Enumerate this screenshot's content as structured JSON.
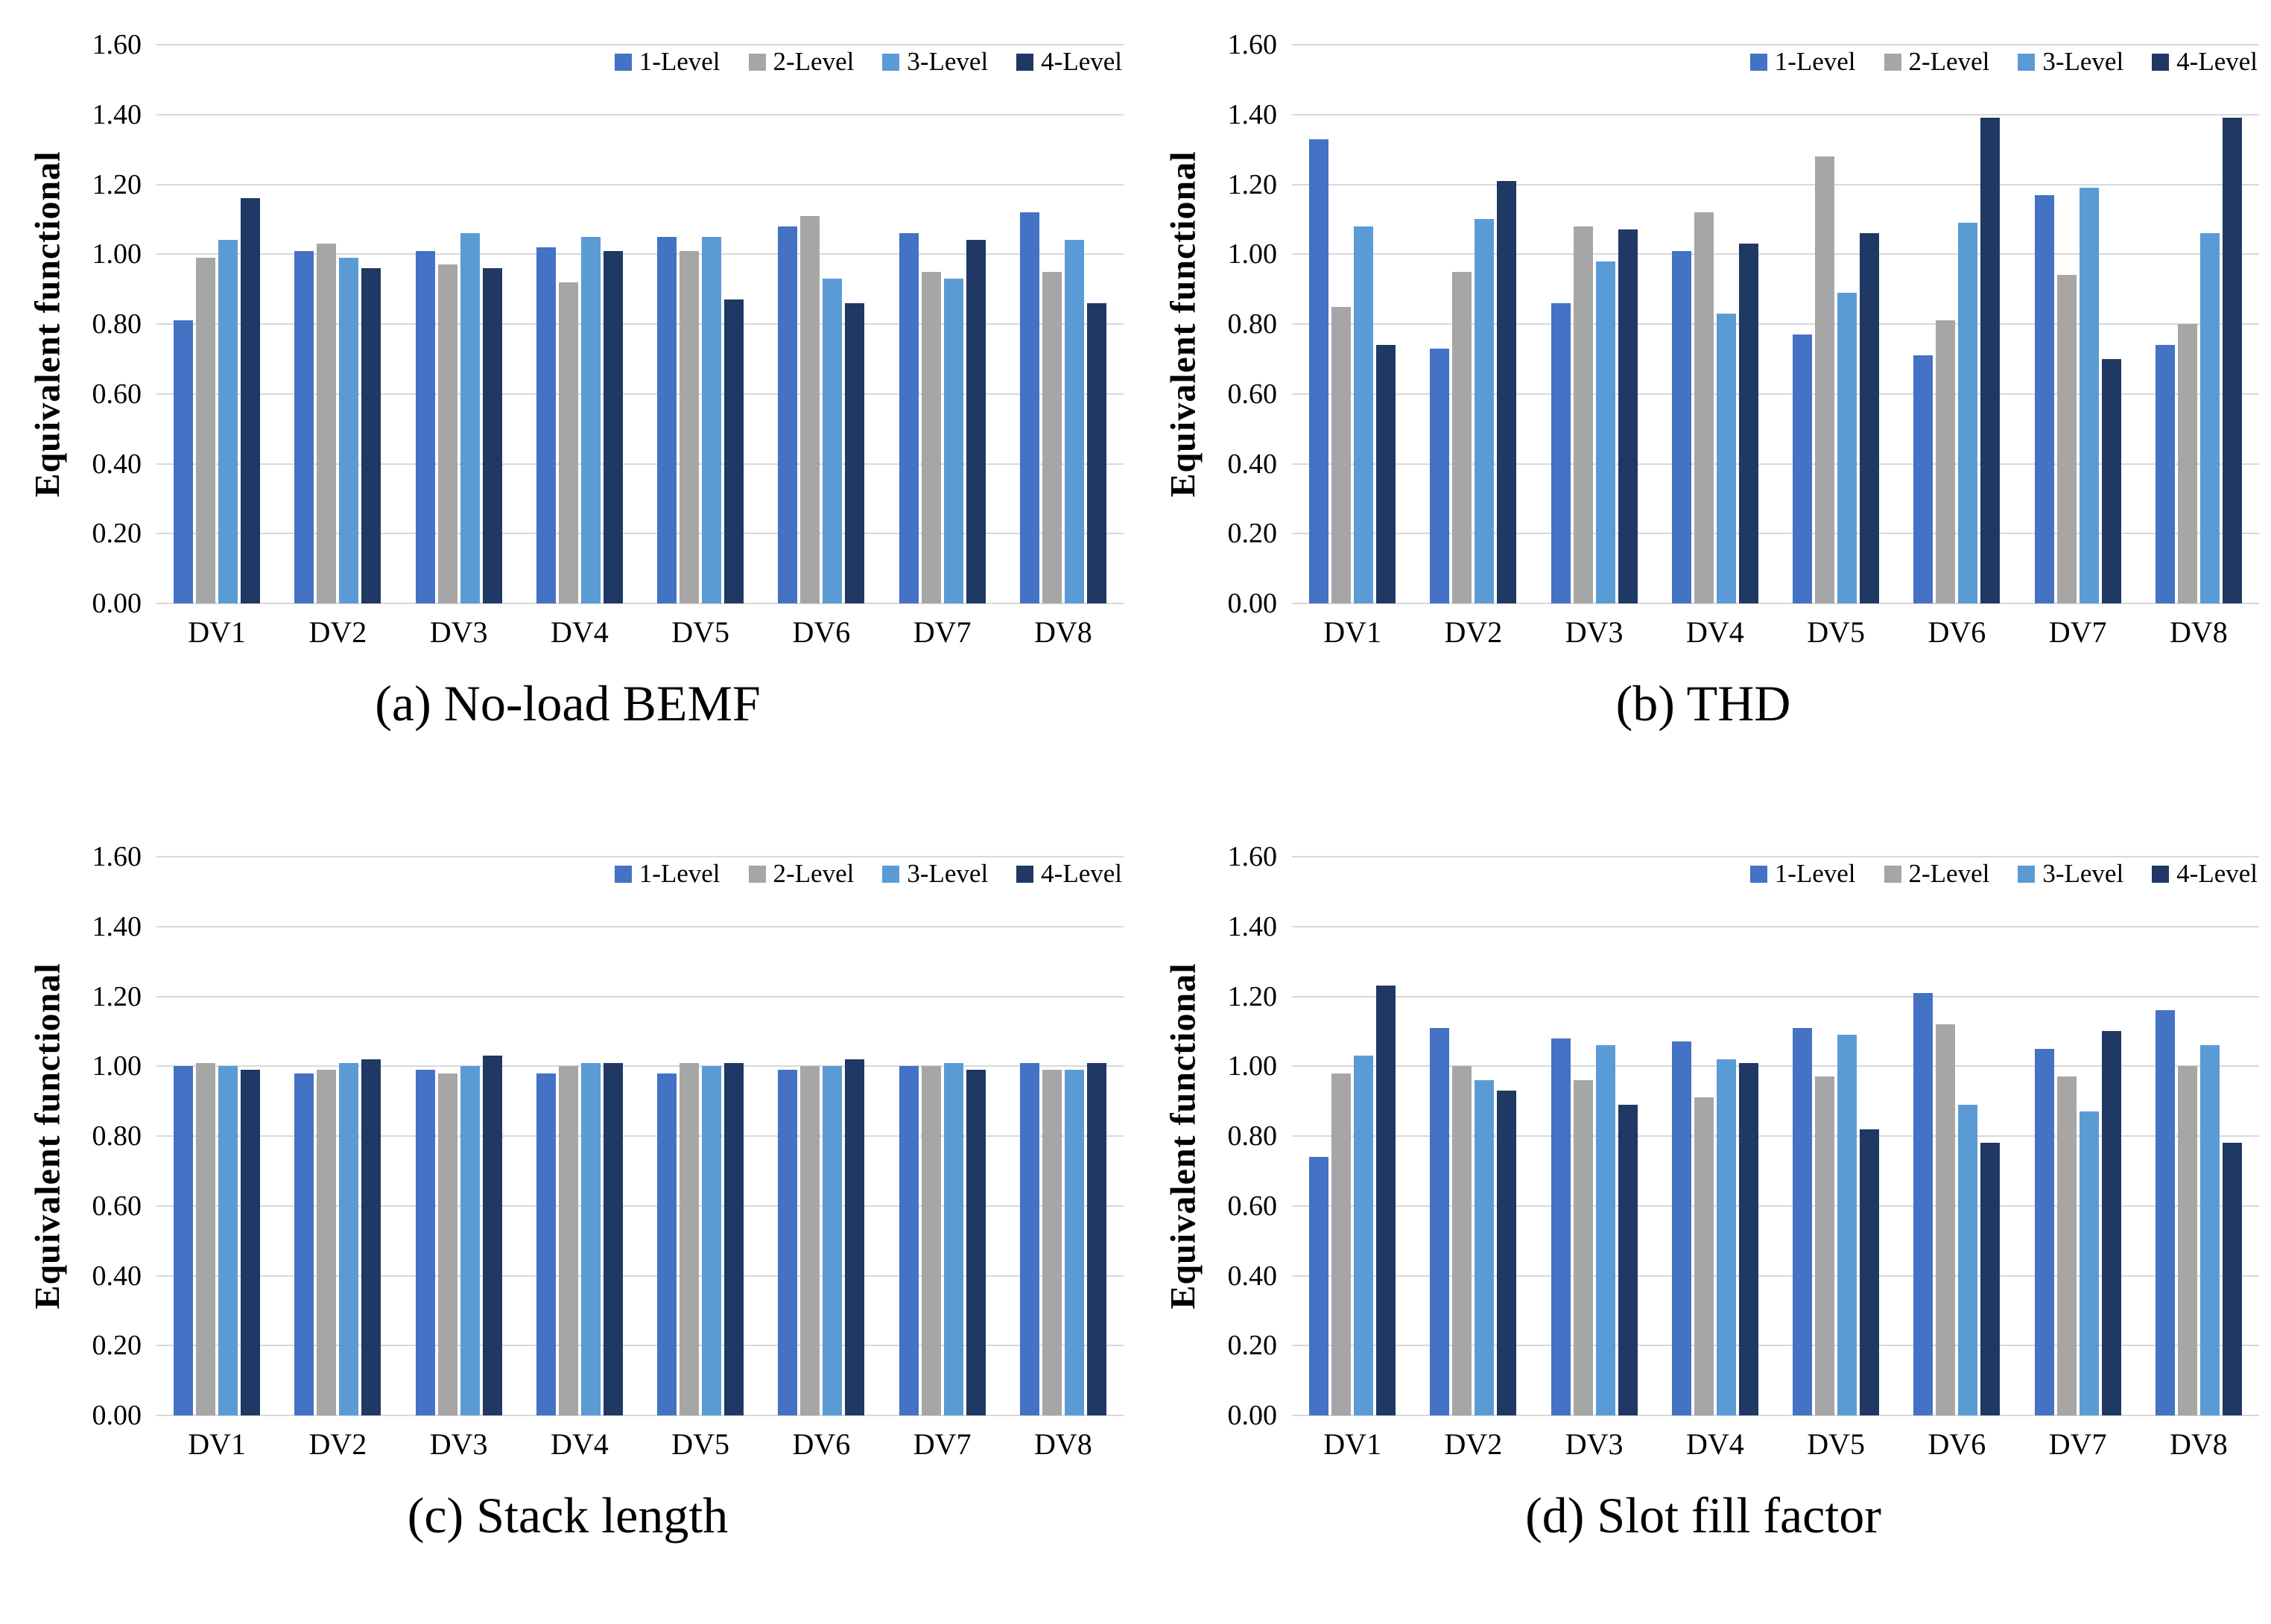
{
  "figure": {
    "background": "#ffffff",
    "gridline_color": "#d9d9d9",
    "text_color": "#000000"
  },
  "chart_data": [
    {
      "type": "bar",
      "caption": "(a) No-load BEMF",
      "ylabel": "Equivalent functional",
      "categories": [
        "DV1",
        "DV2",
        "DV3",
        "DV4",
        "DV5",
        "DV6",
        "DV7",
        "DV8"
      ],
      "ylim": [
        0,
        1.6
      ],
      "ytick_step": 0.2,
      "ytick_labels": [
        "0.00",
        "0.20",
        "0.40",
        "0.60",
        "0.80",
        "1.00",
        "1.20",
        "1.40",
        "1.60"
      ],
      "grid": true,
      "legend_position": "top-right",
      "series": [
        {
          "name": "1-Level",
          "color": "#4472C4",
          "values": [
            0.81,
            1.01,
            1.01,
            1.02,
            1.05,
            1.08,
            1.06,
            1.12
          ]
        },
        {
          "name": "2-Level",
          "color": "#A6A6A6",
          "values": [
            0.99,
            1.03,
            0.97,
            0.92,
            1.01,
            1.11,
            0.95,
            0.95
          ]
        },
        {
          "name": "3-Level",
          "color": "#5B9BD5",
          "values": [
            1.04,
            0.99,
            1.06,
            1.05,
            1.05,
            0.93,
            0.93,
            1.04
          ]
        },
        {
          "name": "4-Level",
          "color": "#1F3864",
          "values": [
            1.16,
            0.96,
            0.96,
            1.01,
            0.87,
            0.86,
            1.04,
            0.86
          ]
        }
      ]
    },
    {
      "type": "bar",
      "caption": "(b) THD",
      "ylabel": "Equivalent functional",
      "categories": [
        "DV1",
        "DV2",
        "DV3",
        "DV4",
        "DV5",
        "DV6",
        "DV7",
        "DV8"
      ],
      "ylim": [
        0,
        1.6
      ],
      "ytick_step": 0.2,
      "ytick_labels": [
        "0.00",
        "0.20",
        "0.40",
        "0.60",
        "0.80",
        "1.00",
        "1.20",
        "1.40",
        "1.60"
      ],
      "grid": true,
      "legend_position": "top-right",
      "series": [
        {
          "name": "1-Level",
          "color": "#4472C4",
          "values": [
            1.33,
            0.73,
            0.86,
            1.01,
            0.77,
            0.71,
            1.17,
            0.74
          ]
        },
        {
          "name": "2-Level",
          "color": "#A6A6A6",
          "values": [
            0.85,
            0.95,
            1.08,
            1.12,
            1.28,
            0.81,
            0.94,
            0.8
          ]
        },
        {
          "name": "3-Level",
          "color": "#5B9BD5",
          "values": [
            1.08,
            1.1,
            0.98,
            0.83,
            0.89,
            1.09,
            1.19,
            1.06
          ]
        },
        {
          "name": "4-Level",
          "color": "#1F3864",
          "values": [
            0.74,
            1.21,
            1.07,
            1.03,
            1.06,
            1.39,
            0.7,
            1.39
          ]
        }
      ]
    },
    {
      "type": "bar",
      "caption": "(c) Stack length",
      "ylabel": "Equivalent functional",
      "categories": [
        "DV1",
        "DV2",
        "DV3",
        "DV4",
        "DV5",
        "DV6",
        "DV7",
        "DV8"
      ],
      "ylim": [
        0,
        1.6
      ],
      "ytick_step": 0.2,
      "ytick_labels": [
        "0.00",
        "0.20",
        "0.40",
        "0.60",
        "0.80",
        "1.00",
        "1.20",
        "1.40",
        "1.60"
      ],
      "grid": true,
      "legend_position": "top-right",
      "series": [
        {
          "name": "1-Level",
          "color": "#4472C4",
          "values": [
            1.0,
            0.98,
            0.99,
            0.98,
            0.98,
            0.99,
            1.0,
            1.01
          ]
        },
        {
          "name": "2-Level",
          "color": "#A6A6A6",
          "values": [
            1.01,
            0.99,
            0.98,
            1.0,
            1.01,
            1.0,
            1.0,
            0.99
          ]
        },
        {
          "name": "3-Level",
          "color": "#5B9BD5",
          "values": [
            1.0,
            1.01,
            1.0,
            1.01,
            1.0,
            1.0,
            1.01,
            0.99
          ]
        },
        {
          "name": "4-Level",
          "color": "#1F3864",
          "values": [
            0.99,
            1.02,
            1.03,
            1.01,
            1.01,
            1.02,
            0.99,
            1.01
          ]
        }
      ]
    },
    {
      "type": "bar",
      "caption": "(d) Slot fill factor",
      "ylabel": "Equivalent functional",
      "categories": [
        "DV1",
        "DV2",
        "DV3",
        "DV4",
        "DV5",
        "DV6",
        "DV7",
        "DV8"
      ],
      "ylim": [
        0,
        1.6
      ],
      "ytick_step": 0.2,
      "ytick_labels": [
        "0.00",
        "0.20",
        "0.40",
        "0.60",
        "0.80",
        "1.00",
        "1.20",
        "1.40",
        "1.60"
      ],
      "grid": true,
      "legend_position": "top-right",
      "series": [
        {
          "name": "1-Level",
          "color": "#4472C4",
          "values": [
            0.74,
            1.11,
            1.08,
            1.07,
            1.11,
            1.21,
            1.05,
            1.16
          ]
        },
        {
          "name": "2-Level",
          "color": "#A6A6A6",
          "values": [
            0.98,
            1.0,
            0.96,
            0.91,
            0.97,
            1.12,
            0.97,
            1.0
          ]
        },
        {
          "name": "3-Level",
          "color": "#5B9BD5",
          "values": [
            1.03,
            0.96,
            1.06,
            1.02,
            1.09,
            0.89,
            0.87,
            1.06
          ]
        },
        {
          "name": "4-Level",
          "color": "#1F3864",
          "values": [
            1.23,
            0.93,
            0.89,
            1.01,
            0.82,
            0.78,
            1.1,
            0.78
          ]
        }
      ]
    }
  ]
}
